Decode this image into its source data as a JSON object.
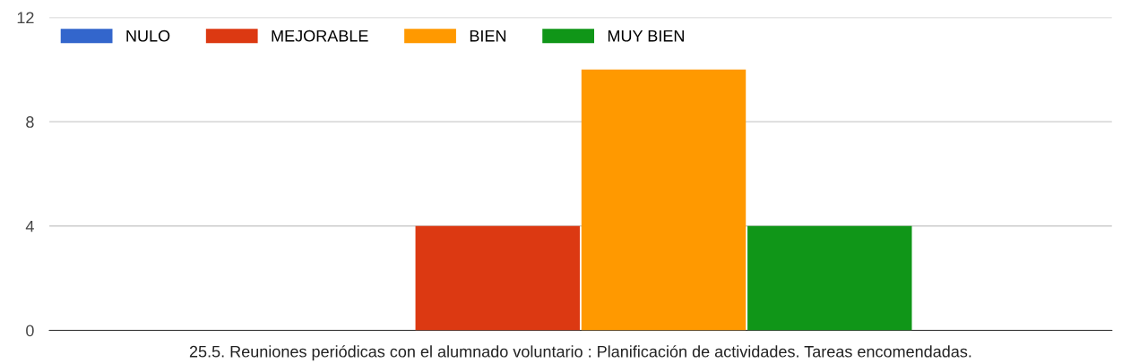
{
  "chart_data": {
    "type": "bar",
    "categories": [
      "25.5. Reuniones periódicas con el alumnado voluntario : Planificación de actividades. Tareas encomendadas."
    ],
    "series": [
      {
        "name": "NULO",
        "color": "#3366cc",
        "values": [
          0
        ]
      },
      {
        "name": "MEJORABLE",
        "color": "#dc3912",
        "values": [
          4
        ]
      },
      {
        "name": "BIEN",
        "color": "#ff9900",
        "values": [
          10
        ]
      },
      {
        "name": "MUY BIEN",
        "color": "#109618",
        "values": [
          4
        ]
      }
    ],
    "ylim": [
      0,
      12
    ],
    "yticks": [
      0,
      4,
      8,
      12
    ],
    "grid": "y",
    "legend": "top left"
  }
}
